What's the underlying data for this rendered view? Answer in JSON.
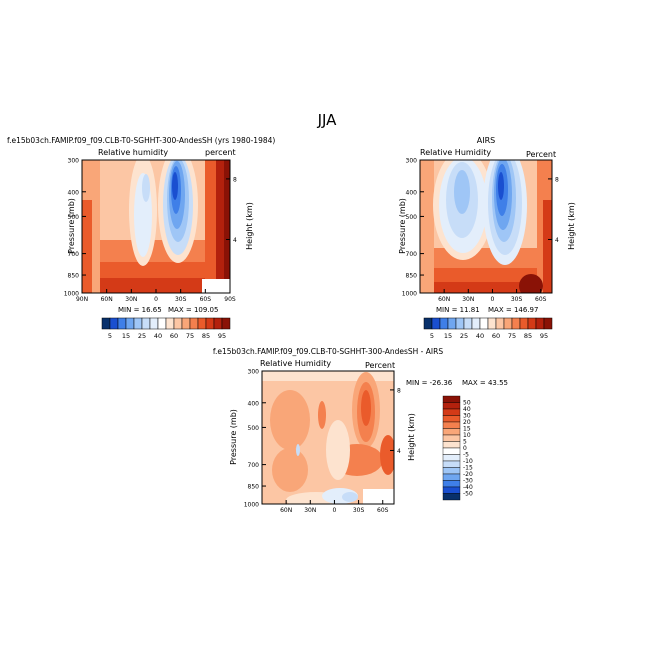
{
  "figure": {
    "title": "JJA"
  },
  "chart_data": [
    {
      "type": "heatmap",
      "panel": "model",
      "title": "f.e15b03ch.FAMIP.f09_f09.CLB-T0-SGHHT-300-AndesSH (yrs 1980-1984)",
      "left_label": "Relative humidity",
      "right_label": "percent",
      "ylabel": "Pressure (mb)",
      "ylabel_right": "Height (km)",
      "yticks": [
        "300",
        "400",
        "500",
        "700",
        "850",
        "1000"
      ],
      "yticks_right": [
        "8",
        "4"
      ],
      "xticks": [
        "90N",
        "60N",
        "30N",
        "0",
        "30S",
        "60S",
        "90S"
      ],
      "min_label": "MIN = 16.65",
      "max_label": "MAX = 109.05",
      "colorbar": {
        "levels": [
          "5",
          "15",
          "25",
          "40",
          "60",
          "75",
          "85",
          "95"
        ],
        "colors": [
          "#08306b",
          "#1a4fd0",
          "#3f7fe8",
          "#6fa6f0",
          "#9fc6f6",
          "#c7ddf8",
          "#e3eefb",
          "#ffffff",
          "#fde3cf",
          "#fcc6a4",
          "#f9a678",
          "#f4804e",
          "#ea5b2b",
          "#d43a17",
          "#b3210d",
          "#8a1206"
        ]
      }
    },
    {
      "type": "heatmap",
      "panel": "obs",
      "title": "AIRS",
      "left_label": "Relative Humidity",
      "right_label": "Percent",
      "ylabel": "Pressure (mb)",
      "ylabel_right": "Height (km)",
      "yticks": [
        "300",
        "400",
        "500",
        "700",
        "850",
        "1000"
      ],
      "yticks_right": [
        "8",
        "4"
      ],
      "xticks": [
        "60N",
        "30N",
        "0",
        "30S",
        "60S"
      ],
      "min_label": "MIN = 11.81",
      "max_label": "MAX = 146.97",
      "colorbar": {
        "levels": [
          "5",
          "15",
          "25",
          "40",
          "60",
          "75",
          "85",
          "95"
        ]
      }
    },
    {
      "type": "heatmap",
      "panel": "difference",
      "title": "f.e15b03ch.FAMIP.f09_f09.CLB-T0-SGHHT-300-AndesSH - AIRS",
      "left_label": "Relative Humidity",
      "right_label": "Percent",
      "ylabel": "Pressure (mb)",
      "ylabel_right": "Height (km)",
      "yticks": [
        "300",
        "400",
        "500",
        "700",
        "850",
        "1000"
      ],
      "yticks_right": [
        "8",
        "4"
      ],
      "xticks": [
        "60N",
        "30N",
        "0",
        "30S",
        "60S"
      ],
      "min_label": "MIN = -26.36",
      "max_label": "MAX = 43.55",
      "colorbar": {
        "levels": [
          "50",
          "40",
          "30",
          "20",
          "15",
          "10",
          "5",
          "0",
          "-5",
          "-10",
          "-15",
          "-20",
          "-30",
          "-40",
          "-50"
        ],
        "colors": [
          "#8a1206",
          "#b3210d",
          "#d43a17",
          "#ea5b2b",
          "#f4804e",
          "#f9a678",
          "#fcc6a4",
          "#fde3cf",
          "#ffffff",
          "#e3eefb",
          "#c7ddf8",
          "#9fc6f6",
          "#6fa6f0",
          "#3f7fe8",
          "#1a4fd0",
          "#08306b"
        ]
      }
    }
  ]
}
